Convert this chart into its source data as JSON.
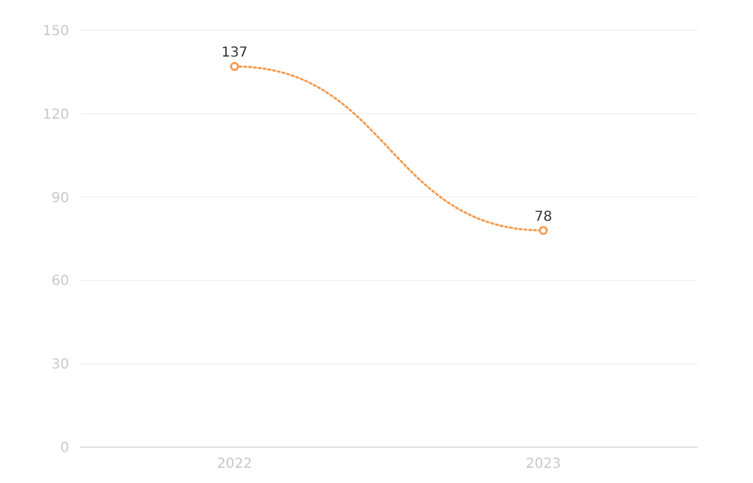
{
  "chart_data": {
    "type": "line",
    "categories": [
      "2022",
      "2023"
    ],
    "series": [
      {
        "color": "#f59a4c",
        "values": [
          137,
          78
        ]
      }
    ],
    "ylim": [
      0,
      150
    ],
    "yticks": [
      0,
      30,
      60,
      90,
      120,
      150
    ],
    "grid": "y",
    "marker": "circle",
    "line_style": "dotted",
    "data_labels": true
  }
}
